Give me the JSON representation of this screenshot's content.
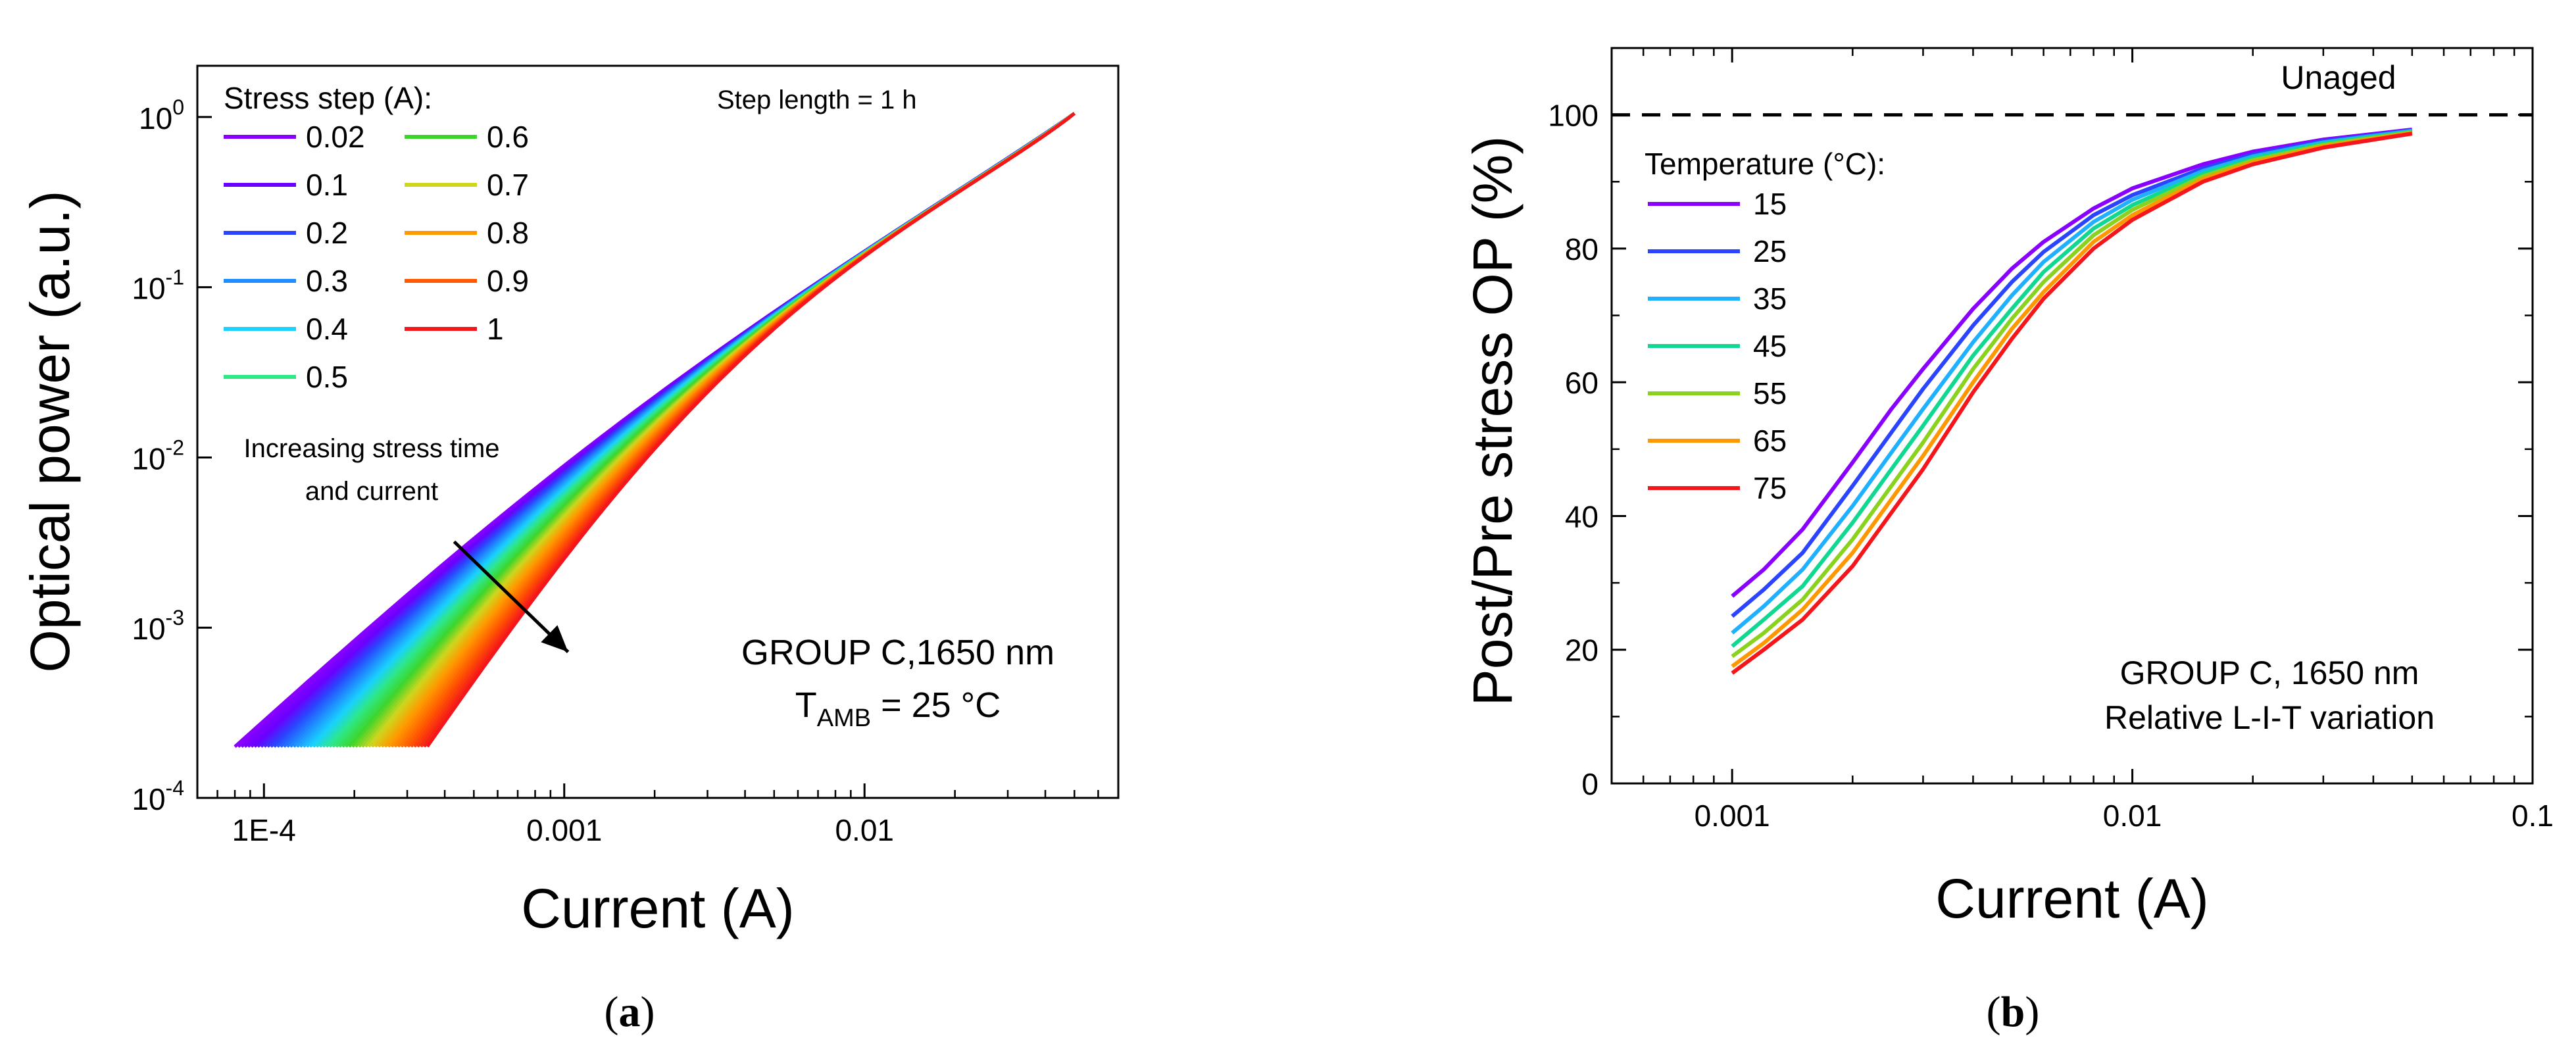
{
  "chart_data": [
    {
      "type": "line",
      "panel_label": "a",
      "xlabel": "Current (A)",
      "ylabel": "Optical power (a.u.)",
      "x_scale": "log",
      "y_scale": "log",
      "xlim": [
        6e-05,
        0.07
      ],
      "ylim": [
        0.0001,
        2
      ],
      "x_ticks": [
        {
          "value": 0.0001,
          "label": "1E-4"
        },
        {
          "value": 0.001,
          "label": "0.001"
        },
        {
          "value": 0.01,
          "label": "0.01"
        }
      ],
      "y_ticks": [
        {
          "value": 0.0001,
          "base": "10",
          "exp": "-4"
        },
        {
          "value": 0.001,
          "base": "10",
          "exp": "-3"
        },
        {
          "value": 0.01,
          "base": "10",
          "exp": "-2"
        },
        {
          "value": 0.1,
          "base": "10",
          "exp": "-1"
        },
        {
          "value": 1,
          "base": "10",
          "exp": "0"
        }
      ],
      "legend_title": "Stress step (A):",
      "legend_placement": "top-left",
      "legend_columns": [
        [
          {
            "label": "0.02",
            "color": "#8a00ff"
          },
          {
            "label": "0.1",
            "color": "#6a00ff"
          },
          {
            "label": "0.2",
            "color": "#2a44ff"
          },
          {
            "label": "0.3",
            "color": "#1f8cff"
          },
          {
            "label": "0.4",
            "color": "#19d2ff"
          },
          {
            "label": "0.5",
            "color": "#2ee886"
          }
        ],
        [
          {
            "label": "0.6",
            "color": "#3ed52b"
          },
          {
            "label": "0.7",
            "color": "#cfd61e"
          },
          {
            "label": "0.8",
            "color": "#ff9a00"
          },
          {
            "label": "0.9",
            "color": "#ff5a00"
          },
          {
            "label": "1",
            "color": "#f5161b"
          }
        ]
      ],
      "annotations": {
        "step_length": "Step length = 1 h",
        "arrow_line1": "Increasing stress time",
        "arrow_line2": "and current",
        "arrow_from": [
          0.00043,
          0.0032
        ],
        "arrow_to": [
          0.00103,
          0.00072
        ],
        "group": "GROUP C,1650 nm",
        "tamb_main": "T",
        "tamb_sub": "AMB",
        "tamb_value": " = 25 °C"
      },
      "curve_family": {
        "count": 60,
        "x_end": 0.05,
        "y_end": 1.05,
        "y_start": 0.0002,
        "x_start_first": 8e-05,
        "x_start_last": 0.00035,
        "colors": [
          "#8a00ff",
          "#6a00ff",
          "#2a44ff",
          "#1f8cff",
          "#19d2ff",
          "#2ee886",
          "#3ed52b",
          "#cfd61e",
          "#ff9a00",
          "#ff5a00",
          "#f5161b"
        ]
      }
    },
    {
      "type": "line",
      "panel_label": "b",
      "xlabel": "Current (A)",
      "ylabel": "Post/Pre stress OP (%)",
      "x_scale": "log",
      "y_scale": "linear",
      "xlim": [
        0.0005,
        0.1
      ],
      "ylim": [
        0,
        110
      ],
      "x_ticks": [
        {
          "value": 0.001,
          "label": "0.001"
        },
        {
          "value": 0.01,
          "label": "0.01"
        },
        {
          "value": 0.1,
          "label": "0.1"
        }
      ],
      "y_ticks": [
        {
          "value": 0,
          "label": "0"
        },
        {
          "value": 20,
          "label": "20"
        },
        {
          "value": 40,
          "label": "40"
        },
        {
          "value": 60,
          "label": "60"
        },
        {
          "value": 80,
          "label": "80"
        },
        {
          "value": 100,
          "label": "100"
        }
      ],
      "reference_line": {
        "value": 100,
        "label": "Unaged"
      },
      "legend_title": "Temperature (°C):",
      "legend_placement": "upper-left",
      "x": [
        0.001,
        0.0012,
        0.0015,
        0.002,
        0.0025,
        0.003,
        0.004,
        0.005,
        0.006,
        0.008,
        0.01,
        0.015,
        0.02,
        0.03,
        0.05
      ],
      "series": [
        {
          "name": "15",
          "color": "#8a00ff",
          "values": [
            28,
            32,
            38,
            48,
            56,
            62,
            71,
            77,
            81,
            86,
            89,
            92.6,
            94.5,
            96.3,
            97.8
          ]
        },
        {
          "name": "25",
          "color": "#2a44ff",
          "values": [
            25,
            29,
            34.5,
            44.5,
            52.5,
            59,
            68.5,
            75,
            79.5,
            85,
            88,
            92,
            94.1,
            96.1,
            97.7
          ]
        },
        {
          "name": "35",
          "color": "#1fb0ff",
          "values": [
            22.5,
            26.5,
            32,
            41.5,
            49.5,
            56,
            66,
            73,
            78,
            84,
            87.3,
            91.6,
            93.8,
            95.9,
            97.6
          ]
        },
        {
          "name": "45",
          "color": "#10d890",
          "values": [
            20.5,
            24.5,
            29.5,
            39,
            47,
            53.5,
            64,
            71,
            76.5,
            83,
            86.5,
            91.2,
            93.5,
            95.7,
            97.5
          ]
        },
        {
          "name": "55",
          "color": "#8ad21e",
          "values": [
            19,
            22.5,
            27.5,
            36.5,
            44.5,
            51,
            62,
            69.5,
            75,
            82,
            85.8,
            90.8,
            93.2,
            95.5,
            97.4
          ]
        },
        {
          "name": "65",
          "color": "#ff9800",
          "values": [
            17.5,
            21,
            26,
            34.5,
            42.5,
            49,
            60,
            68,
            73.5,
            81,
            85,
            90.4,
            92.9,
            95.3,
            97.3
          ]
        },
        {
          "name": "75",
          "color": "#f5161b",
          "values": [
            16.5,
            20,
            24.5,
            32.5,
            40.5,
            47,
            58.5,
            66.5,
            72.5,
            80,
            84.3,
            90,
            92.6,
            95.1,
            97.2
          ]
        }
      ],
      "annotations": {
        "group": "GROUP C, 1650 nm",
        "variation": "Relative L-I-T variation"
      }
    }
  ],
  "captions": {
    "a": "a",
    "b": "b",
    "open": "(",
    "close": ")"
  }
}
